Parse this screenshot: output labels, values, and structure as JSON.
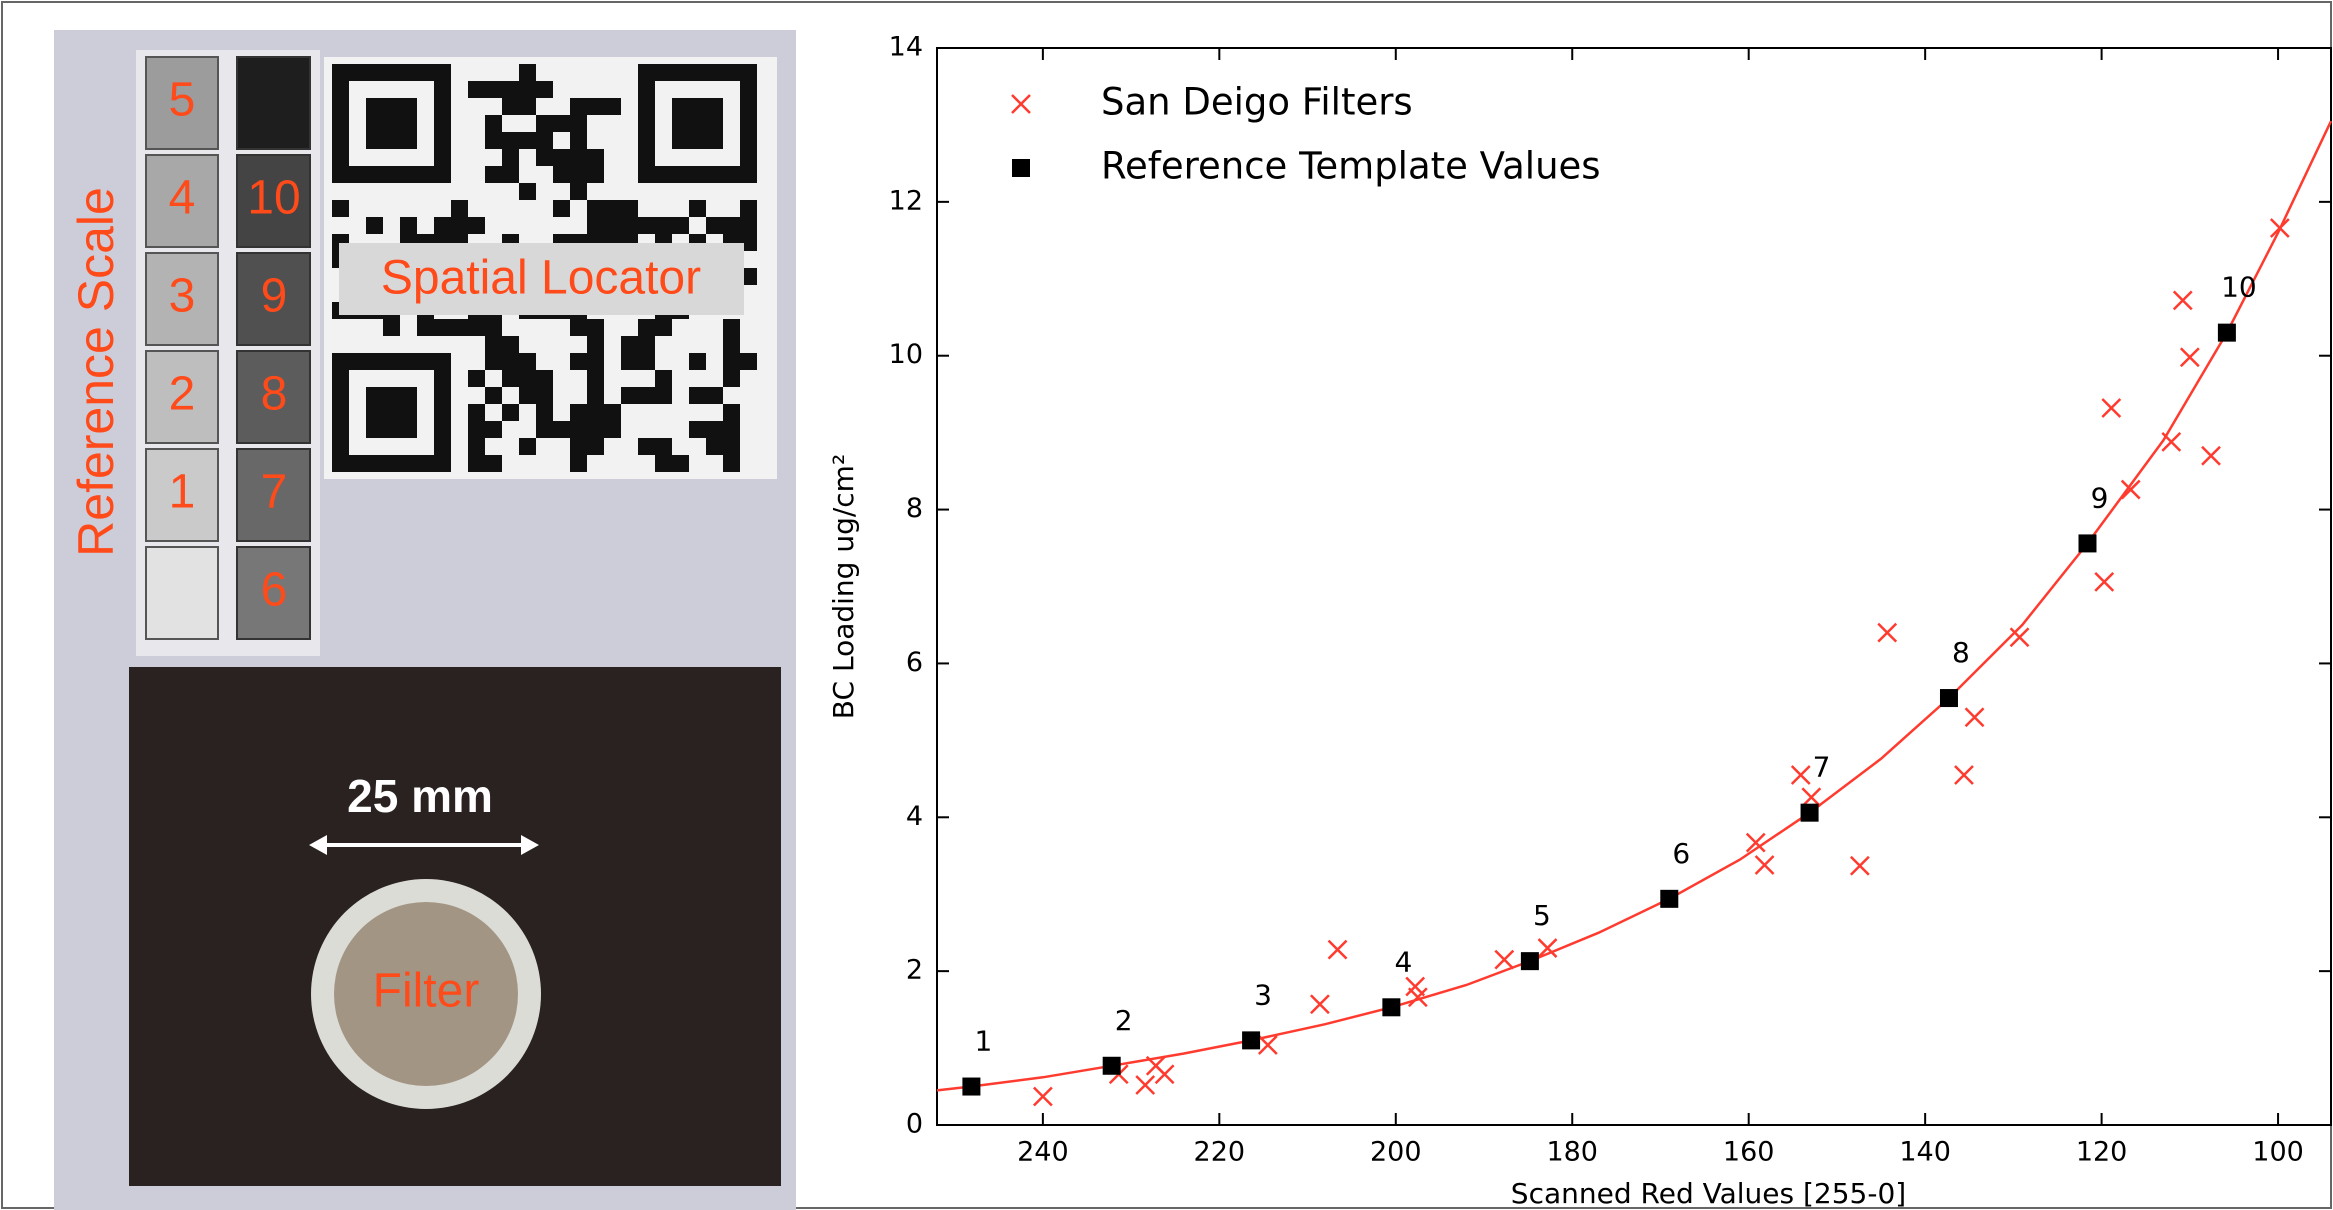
{
  "photo": {
    "reference_title": "Reference Scale",
    "locator_label": "Spatial Locator",
    "scale_left": [
      "5",
      "4",
      "3",
      "2",
      "1"
    ],
    "scale_right": [
      "10",
      "9",
      "8",
      "7",
      "6"
    ],
    "dimension_label": "25 mm",
    "filter_label": "Filter"
  },
  "chart_data": {
    "type": "scatter",
    "xlabel": "Scanned Red Values [255-0]",
    "ylabel": "BC Loading ug/cm²",
    "xlim": [
      252,
      94
    ],
    "ylim": [
      0,
      14
    ],
    "xticks": [
      240,
      220,
      200,
      180,
      160,
      140,
      120,
      100
    ],
    "yticks": [
      0,
      2,
      4,
      6,
      8,
      10,
      12,
      14
    ],
    "legend": "upper left",
    "series": [
      {
        "name": "San Deigo Filters",
        "color": "#ff3b2f",
        "marker": "x",
        "x": [
          240,
          231.4,
          228.4,
          227.2,
          226.2,
          214.5,
          208.6,
          206.6,
          197.8,
          197.5,
          187.7,
          182.8,
          159.2,
          158.2,
          154.1,
          152.9,
          147.4,
          144.3,
          135.6,
          134.4,
          129.3,
          119.7,
          118.9,
          116.7,
          112.1,
          110.8,
          110.0,
          107.6,
          99.8
        ],
        "values": [
          0.37,
          0.66,
          0.52,
          0.77,
          0.66,
          1.04,
          1.57,
          2.28,
          1.8,
          1.66,
          2.15,
          2.3,
          3.67,
          3.38,
          4.55,
          4.26,
          3.37,
          6.4,
          4.55,
          5.3,
          6.34,
          7.06,
          9.32,
          8.26,
          8.88,
          10.72,
          9.98,
          8.7,
          11.66
        ]
      },
      {
        "name": "Reference Template Values",
        "color": "#000000",
        "marker": "square",
        "x": [
          248.1,
          232.2,
          216.4,
          200.5,
          184.8,
          169.0,
          153.1,
          137.3,
          121.6,
          105.8
        ],
        "values": [
          0.5,
          0.77,
          1.1,
          1.53,
          2.13,
          2.94,
          4.06,
          5.55,
          7.56,
          10.3
        ],
        "point_labels": [
          "1",
          "2",
          "3",
          "4",
          "5",
          "6",
          "7",
          "8",
          "9",
          "10"
        ]
      }
    ],
    "fit_curve": {
      "color": "#ff3b2f",
      "x": [
        252,
        248.1,
        240,
        232.2,
        224,
        216.4,
        208,
        200.5,
        192,
        184.8,
        177,
        169.0,
        161,
        153.1,
        145,
        137.3,
        129,
        121.6,
        113,
        105.8,
        100,
        94
      ],
      "values": [
        0.45,
        0.5,
        0.62,
        0.77,
        0.93,
        1.1,
        1.31,
        1.53,
        1.82,
        2.13,
        2.5,
        2.94,
        3.45,
        4.06,
        4.76,
        5.55,
        6.5,
        7.56,
        8.9,
        10.3,
        11.6,
        13.05
      ]
    }
  }
}
